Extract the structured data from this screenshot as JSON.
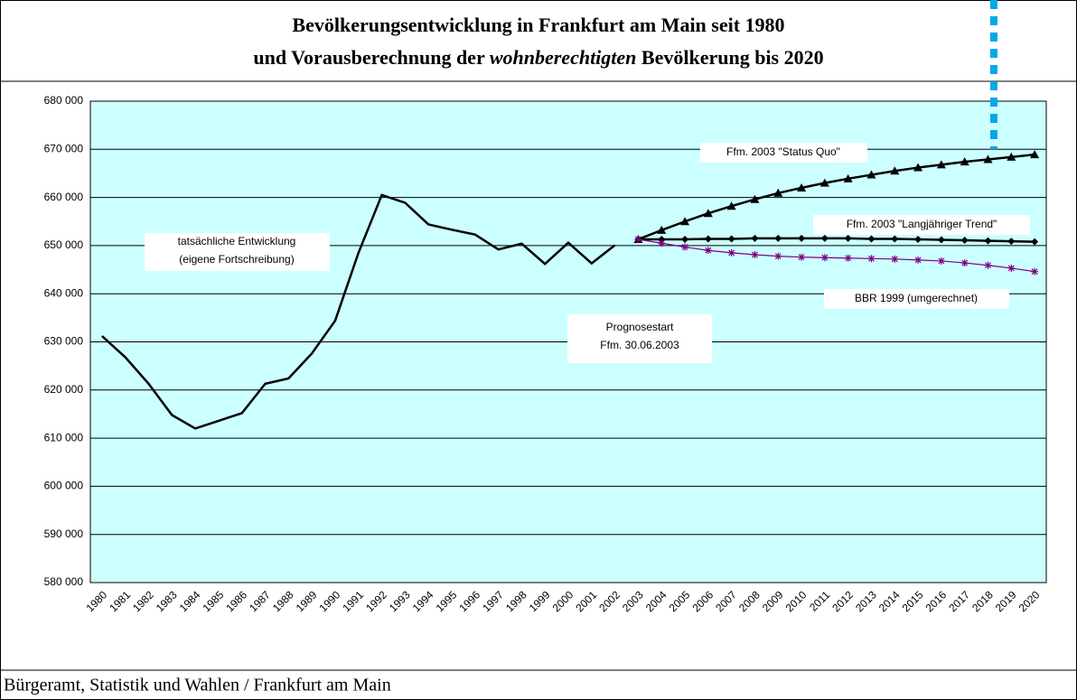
{
  "chart_data": {
    "type": "line",
    "title": [
      "Bevölkerungsentwicklung in Frankfurt am Main seit 1980",
      "und Vorausberechnung der ",
      "wohnberechtigten",
      " Bevölkerung bis 2020"
    ],
    "source": "Bürgeramt, Statistik und Wahlen / Frankfurt am Main",
    "annotations": [
      "(eigene Fortschreibung)",
      "Prognosestart",
      "Ffm. 30.06.2003"
    ],
    "categories": [
      "1980",
      "1981",
      "1982",
      "1983",
      "1984",
      "1985",
      "1986",
      "1987",
      "1988",
      "1989",
      "1990",
      "1991",
      "1992",
      "1993",
      "1994",
      "1995",
      "1996",
      "1997",
      "1998",
      "1999",
      "2000",
      "2001",
      "2002",
      "2003",
      "2004",
      "2005",
      "2006",
      "2007",
      "2008",
      "2009",
      "2010",
      "2011",
      "2012",
      "2013",
      "2014",
      "2015",
      "2016",
      "2017",
      "2018",
      "2019",
      "2020"
    ],
    "series": [
      {
        "name": "tatsächliche Entwicklung",
        "color": "#000000",
        "marker": "none",
        "values": [
          631200,
          626800,
          621300,
          614800,
          612000,
          613600,
          615200,
          621300,
          622400,
          627600,
          634400,
          648500,
          660500,
          658900,
          654400,
          653300,
          652300,
          649200,
          650400,
          646200,
          650600,
          646300,
          650100,
          null,
          null,
          null,
          null,
          null,
          null,
          null,
          null,
          null,
          null,
          null,
          null,
          null,
          null,
          null,
          null,
          null,
          null
        ]
      },
      {
        "name": "Ffm. 2003 \"Status Quo\"",
        "color": "#000000",
        "marker": "triangle",
        "values": [
          null,
          null,
          null,
          null,
          null,
          null,
          null,
          null,
          null,
          null,
          null,
          null,
          null,
          null,
          null,
          null,
          null,
          null,
          null,
          null,
          null,
          null,
          null,
          651300,
          653200,
          655000,
          656700,
          658200,
          659600,
          660900,
          662000,
          663000,
          663900,
          664700,
          665500,
          666200,
          666800,
          667400,
          667900,
          668400,
          668900
        ]
      },
      {
        "name": "Ffm. 2003 \"Langjähriger Trend\"",
        "color": "#000000",
        "marker": "diamond",
        "values": [
          null,
          null,
          null,
          null,
          null,
          null,
          null,
          null,
          null,
          null,
          null,
          null,
          null,
          null,
          null,
          null,
          null,
          null,
          null,
          null,
          null,
          null,
          null,
          651300,
          651300,
          651300,
          651400,
          651400,
          651500,
          651500,
          651500,
          651500,
          651500,
          651400,
          651400,
          651300,
          651200,
          651100,
          651000,
          650900,
          650800
        ]
      },
      {
        "name": "BBR 1999 (umgerechnet)",
        "color": "#800080",
        "marker": "asterisk",
        "values": [
          null,
          null,
          null,
          null,
          null,
          null,
          null,
          null,
          null,
          null,
          null,
          null,
          null,
          null,
          null,
          null,
          null,
          null,
          null,
          null,
          null,
          null,
          null,
          651300,
          650500,
          649700,
          649000,
          648500,
          648100,
          647800,
          647600,
          647500,
          647400,
          647300,
          647200,
          647000,
          646800,
          646400,
          645900,
          645300,
          644600
        ]
      }
    ],
    "ylim": [
      580000,
      680000
    ],
    "yticks": [
      {
        "value": 580000,
        "label": "580 000"
      },
      {
        "value": 590000,
        "label": "590 000"
      },
      {
        "value": 600000,
        "label": "600 000"
      },
      {
        "value": 610000,
        "label": "610 000"
      },
      {
        "value": 620000,
        "label": "620 000"
      },
      {
        "value": 630000,
        "label": "630 000"
      },
      {
        "value": 640000,
        "label": "640 000"
      },
      {
        "value": 650000,
        "label": "650 000"
      },
      {
        "value": 660000,
        "label": "660 000"
      },
      {
        "value": 670000,
        "label": "670 000"
      },
      {
        "value": 680000,
        "label": "680 000"
      }
    ],
    "grid": true,
    "background": "#ccffff"
  }
}
